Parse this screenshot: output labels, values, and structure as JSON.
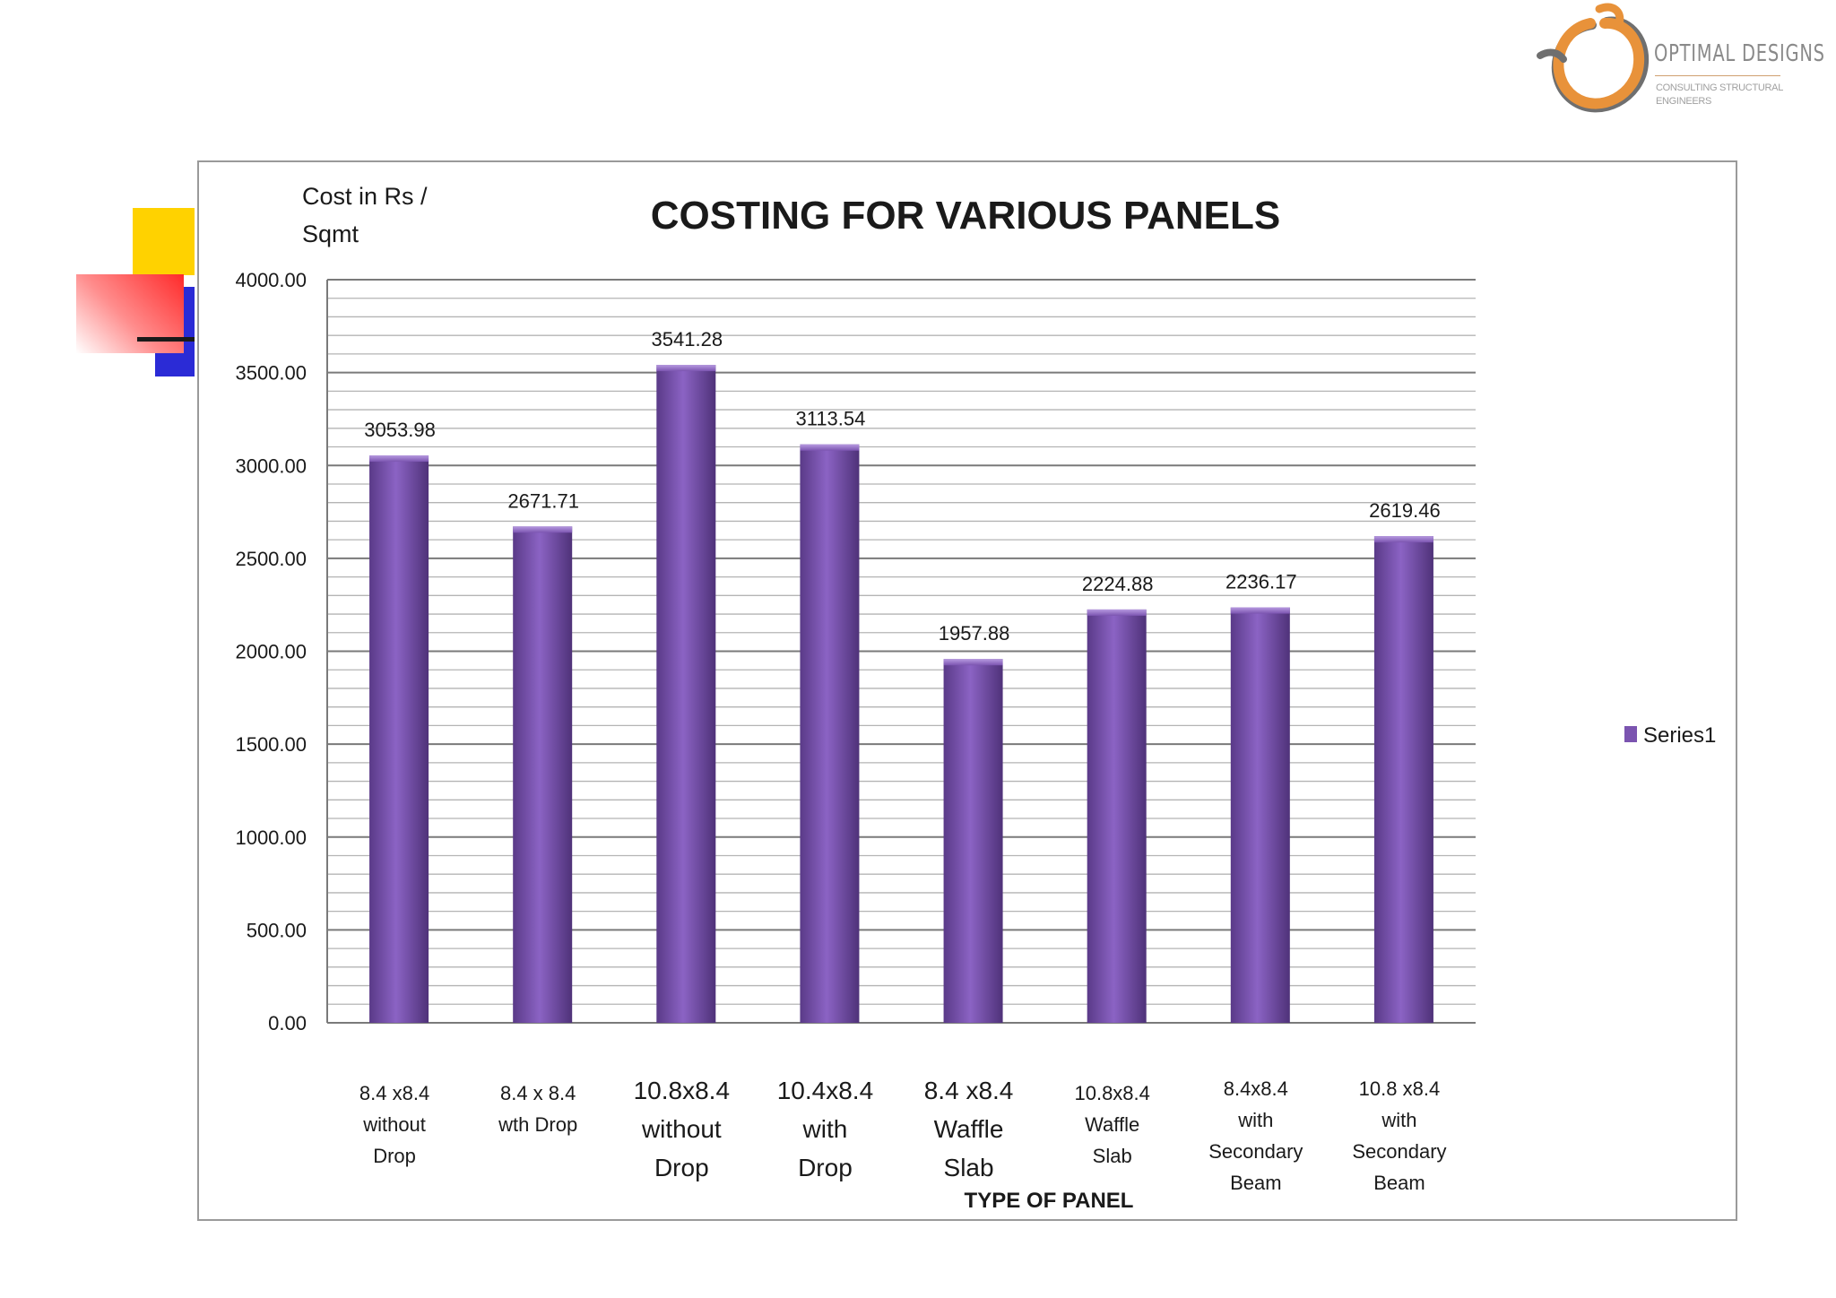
{
  "logo": {
    "title": "OPTIMAL DESIGNS",
    "subtitle": "CONSULTING STRUCTURAL ENGINEERS",
    "colors": {
      "ring": "#e8923a",
      "ring_dark": "#6f6f6f"
    }
  },
  "chart_data": {
    "type": "bar",
    "title": "COSTING FOR VARIOUS PANELS",
    "ylabel_lines": [
      "Cost in Rs /",
      "Sqmt"
    ],
    "xlabel": "TYPE OF PANEL",
    "ylim": [
      0,
      4000
    ],
    "yticks": [
      "0.00",
      "500.00",
      "1000.00",
      "1500.00",
      "2000.00",
      "2500.00",
      "3000.00",
      "3500.00",
      "4000.00"
    ],
    "ytick_values": [
      0,
      500,
      1000,
      1500,
      2000,
      2500,
      3000,
      3500,
      4000
    ],
    "minor_gridline_step": 100,
    "grid": true,
    "legend_position": "right",
    "bar_color": "#7b54b0",
    "categories": [
      [
        "8.4 x8.4",
        "without",
        "Drop"
      ],
      [
        "8.4 x 8.4",
        "wth Drop"
      ],
      [
        "10.8x8.4",
        "without",
        "Drop"
      ],
      [
        "10.4x8.4",
        "with",
        "Drop"
      ],
      [
        "8.4 x8.4",
        "Waffle",
        "Slab"
      ],
      [
        "10.8x8.4",
        "Waffle",
        "Slab"
      ],
      [
        "8.4x8.4",
        "with",
        "Secondary",
        "Beam"
      ],
      [
        "10.8 x8.4",
        "with",
        "Secondary",
        "Beam"
      ]
    ],
    "series": [
      {
        "name": "Series1",
        "values": [
          3053.98,
          2671.71,
          3541.28,
          3113.54,
          1957.88,
          2224.88,
          2236.17,
          2619.46
        ],
        "labels": [
          "3053.98",
          "2671.71",
          "3541.28",
          "3113.54",
          "1957.88",
          "2224.88",
          "2236.17",
          "2619.46"
        ]
      }
    ]
  }
}
